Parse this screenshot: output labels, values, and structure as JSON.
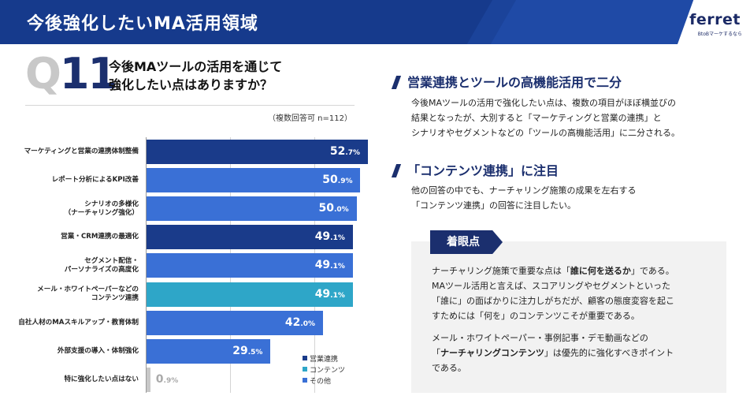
{
  "header": {
    "title": "今後強化したいMA活用領域"
  },
  "logo": {
    "name": "ferret",
    "tagline": "BtoBマーケするなら"
  },
  "question": {
    "q": "Q",
    "num": "11",
    "line1": "今後MAツールの活用を通じて",
    "line2": "強化したい点はありますか？",
    "note": "（複数回答可 n=112）"
  },
  "chart_data": {
    "type": "bar",
    "orientation": "horizontal",
    "categories": [
      "マーケティングと営業の連携体制整備",
      "レポート分析によるKPI改善",
      "シナリオの多様化\n（ナーチャリング強化）",
      "営業・CRM連携の最適化",
      "セグメント配信・\nパーソナライズの高度化",
      "メール・ホワイトペーパーなどの\nコンテンツ連携",
      "自社人材のMAスキルアップ・教育体制",
      "外部支援の導入・体制強化",
      "特に強化したい点はない"
    ],
    "values": [
      52.7,
      50.9,
      50.0,
      49.1,
      49.1,
      49.1,
      42.0,
      29.5,
      0.9
    ],
    "value_labels": [
      {
        "int": "52",
        "dec": ".7%"
      },
      {
        "int": "50",
        "dec": ".9%"
      },
      {
        "int": "50",
        "dec": ".0%"
      },
      {
        "int": "49",
        "dec": ".1%"
      },
      {
        "int": "49",
        "dec": ".1%"
      },
      {
        "int": "49",
        "dec": ".1%"
      },
      {
        "int": "42",
        "dec": ".0%"
      },
      {
        "int": "29",
        "dec": ".5%"
      },
      {
        "int": "0",
        "dec": ".9%"
      }
    ],
    "groups": [
      "sales",
      "other",
      "other",
      "sales",
      "other",
      "content",
      "other",
      "other",
      "other"
    ],
    "colors": {
      "sales": "#1a3b8a",
      "content": "#2ea6c8",
      "other": "#3a70d6",
      "none": "#c8c8c8"
    },
    "legend": [
      {
        "key": "sales",
        "label": "営業連携"
      },
      {
        "key": "content",
        "label": "コンテンツ"
      },
      {
        "key": "other",
        "label": "その他"
      }
    ],
    "xlim": [
      0,
      60
    ],
    "unit": "%"
  },
  "right": {
    "heading1": "営業連携とツールの高機能活用で二分",
    "para1": [
      "今後MAツールの活用で強化したい点は、複数の項目がほぼ横並びの",
      "結果となったが、大別すると「マーケティングと営業の連携」と",
      "シナリオやセグメントなどの「ツールの高機能活用」に二分される。"
    ],
    "heading2": "「コンテンツ連携」に注目",
    "para2": [
      "他の回答の中でも、ナーチャリング施策の成果を左右する",
      "「コンテンツ連携」の回答に注目したい。"
    ],
    "box": {
      "tab": "着眼点",
      "p1a": "ナーチャリング施策で重要な点は「",
      "p1b": "誰に何を送るか",
      "p1c": "」である。",
      "p1_lines": [
        "MAツール活用と言えば、スコアリングやセグメントといった",
        "「誰に」の面ばかりに注力しがちだが、顧客の態度変容を起こ",
        "すためには「何を」のコンテンツこそが重要である。"
      ],
      "p2_line1": "メール・ホワイトペーパー・事例記事・デモ動画などの",
      "p2a": "「",
      "p2b": "ナーチャリングコンテンツ",
      "p2c": "」は優先的に強化すべきポイント",
      "p2_line3": "である。"
    }
  }
}
